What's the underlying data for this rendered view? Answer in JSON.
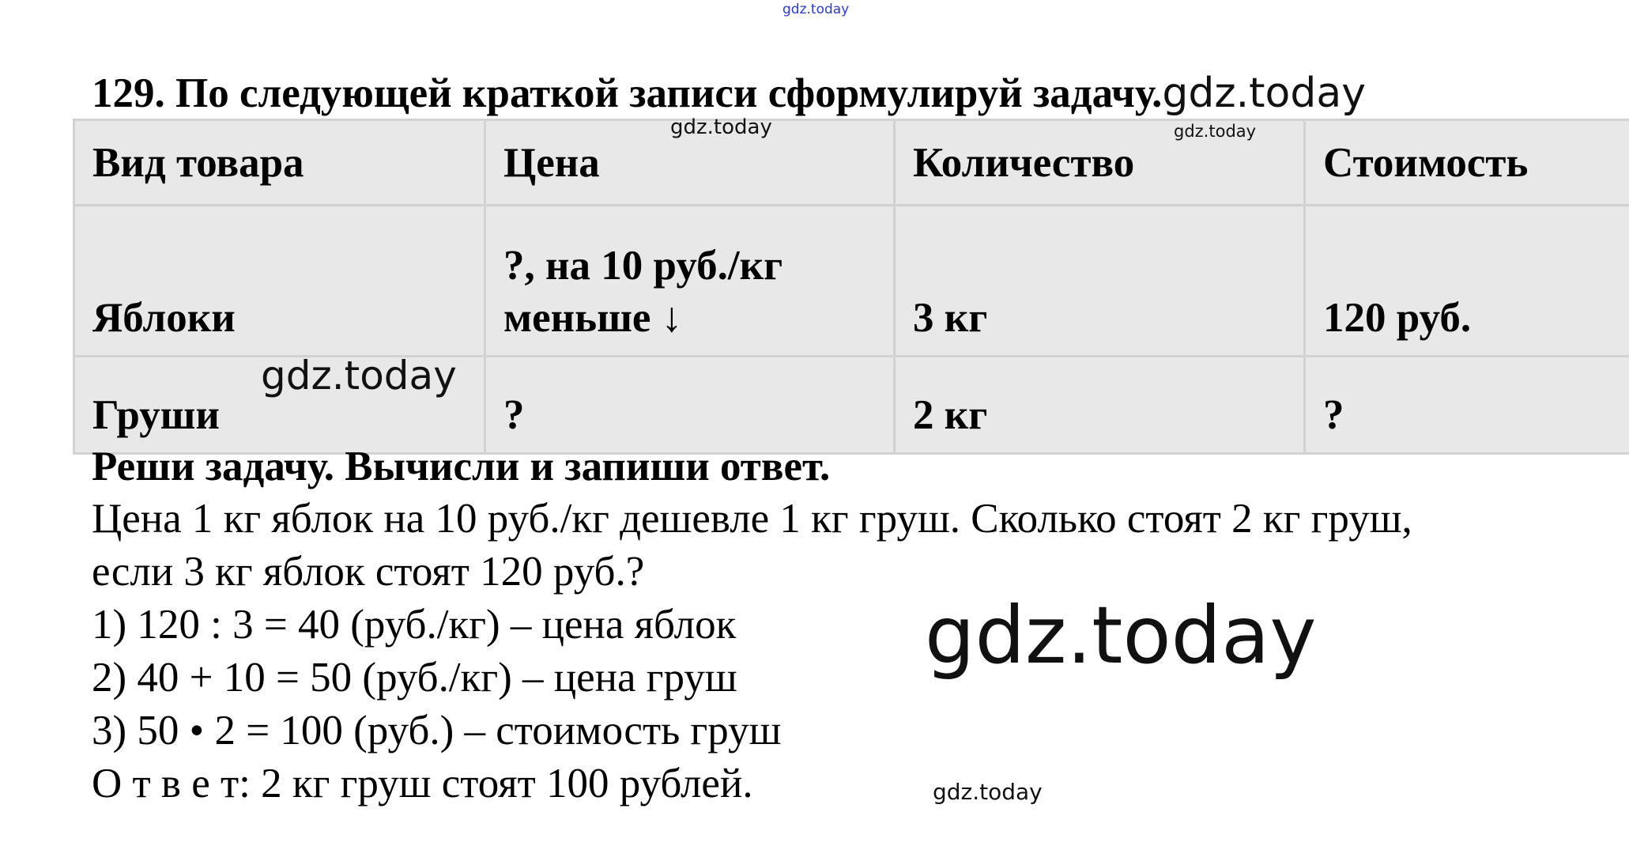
{
  "watermark": "gdz.today",
  "title": {
    "number": "129.",
    "text": "По следующей краткой записи сформулируй задачу."
  },
  "table": {
    "headers": [
      "Вид товара",
      "Цена",
      "Количество",
      "Стоимость"
    ],
    "rows": [
      [
        "Яблоки",
        "?, на 10 руб./кг меньше ↓",
        "3 кг",
        "120 руб."
      ],
      [
        "Груши",
        "?",
        "2 кг",
        "?"
      ]
    ]
  },
  "solution": {
    "heading": "Реши задачу. Вычисли и запиши ответ.",
    "problem_line1": "Цена 1 кг яблок на 10 руб./кг дешевле 1 кг груш. Сколько стоят 2 кг груш,",
    "problem_line2": "если 3 кг яблок стоят 120 руб.?",
    "steps": [
      "1) 120 : 3 = 40 (руб./кг) – цена яблок",
      "2) 40 + 10 = 50 (руб./кг) – цена груш",
      "3) 50 • 2 = 100 (руб.) – стоимость груш"
    ],
    "answer_label": "О т в е т:",
    "answer_text": " 2 кг груш стоят 100 рублей."
  }
}
